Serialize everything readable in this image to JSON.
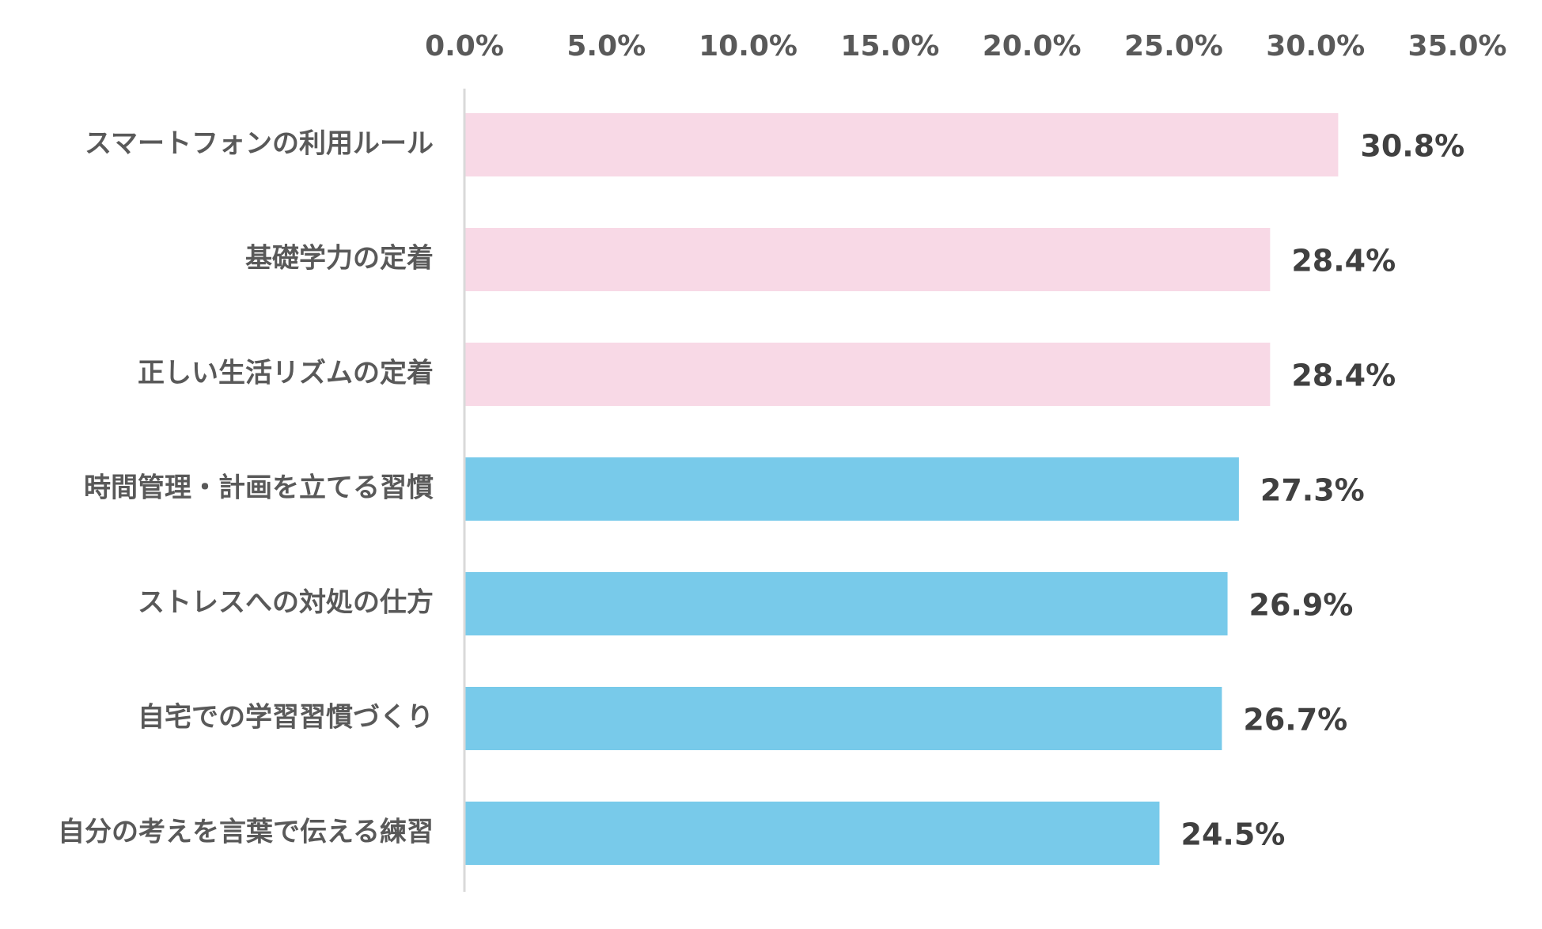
{
  "chart_data": {
    "type": "bar",
    "orientation": "horizontal",
    "title": "",
    "xlabel": "",
    "ylabel": "",
    "xlim": [
      0,
      35
    ],
    "x_ticks": [
      0,
      5,
      10,
      15,
      20,
      25,
      30,
      35
    ],
    "x_tick_labels": [
      "0.0%",
      "5.0%",
      "10.0%",
      "15.0%",
      "20.0%",
      "25.0%",
      "30.0%",
      "35.0%"
    ],
    "x_axis_position": "top",
    "grid": false,
    "legend": "none",
    "categories": [
      "スマートフォンの利用ルール",
      "基礎学力の定着",
      "正しい生活リズムの定着",
      "時間管理・計画を立てる習慣",
      "ストレスへの対処の仕方",
      "自宅での学習習慣づくり",
      "自分の考えを言葉で伝える練習"
    ],
    "values": [
      30.8,
      28.4,
      28.4,
      27.3,
      26.9,
      26.7,
      24.5
    ],
    "data_labels": [
      "30.8%",
      "28.4%",
      "28.4%",
      "27.3%",
      "26.9%",
      "26.7%",
      "24.5%"
    ],
    "bar_colors": [
      "#F8D9E6",
      "#F8D9E6",
      "#F8D9E6",
      "#78CAEA",
      "#78CAEA",
      "#78CAEA",
      "#78CAEA"
    ],
    "highlight_label_color": "#C00000",
    "label_color": "#404040",
    "axis_text_color": "#595959",
    "axis_line_color": "#D9D9D9"
  }
}
